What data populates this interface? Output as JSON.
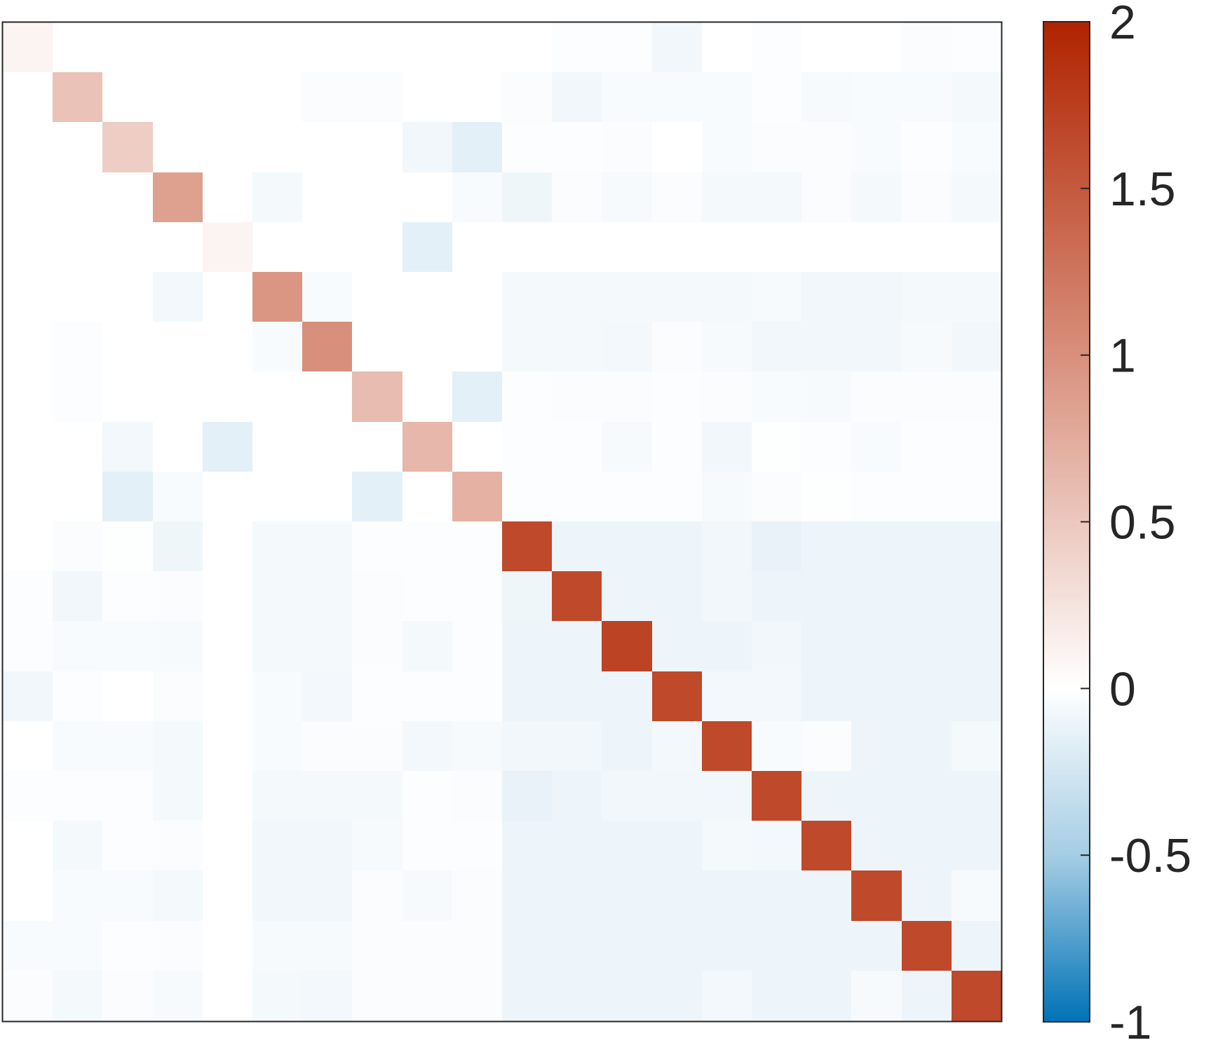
{
  "chart_data": {
    "type": "heatmap",
    "title": "",
    "xlabel": "",
    "ylabel": "",
    "rows": 20,
    "cols": 20,
    "clim": [
      -1,
      2
    ],
    "colormap": {
      "negative_end": "#0072b6",
      "mid_light_blue": "#a5cde4",
      "zero": "#ffffff",
      "positive_mid": "#d8907c",
      "positive_end": "#b02300"
    },
    "colorbar": {
      "ticks": [
        2,
        1.5,
        1,
        0.5,
        0,
        -0.5,
        -1
      ],
      "tick_labels": [
        "2",
        "1.5",
        "1",
        "0.5",
        "0",
        "-0.5",
        "-1"
      ]
    },
    "values": [
      [
        0.1,
        0,
        0,
        0,
        0,
        0,
        0,
        0,
        0,
        0,
        0,
        -0.02,
        -0.02,
        -0.08,
        0,
        -0.02,
        0,
        0,
        -0.03,
        -0.02
      ],
      [
        0,
        0.55,
        0,
        0,
        0,
        0,
        -0.03,
        -0.03,
        0,
        0,
        -0.03,
        -0.08,
        -0.04,
        -0.04,
        -0.04,
        -0.02,
        -0.05,
        -0.04,
        -0.04,
        -0.06
      ],
      [
        0,
        0,
        0.45,
        0,
        0,
        0,
        0,
        0,
        -0.08,
        -0.15,
        -0.02,
        -0.02,
        -0.03,
        0,
        -0.04,
        -0.03,
        -0.03,
        -0.04,
        -0.02,
        -0.04
      ],
      [
        0,
        0,
        0,
        0.85,
        0,
        -0.06,
        0,
        0,
        0,
        -0.04,
        -0.09,
        -0.03,
        -0.05,
        -0.03,
        -0.06,
        -0.06,
        -0.03,
        -0.06,
        -0.03,
        -0.06
      ],
      [
        0,
        0,
        0,
        0,
        0.1,
        0,
        0,
        0,
        -0.15,
        0,
        0,
        0,
        0,
        0,
        0,
        0,
        0,
        0,
        0,
        0
      ],
      [
        0,
        0,
        0,
        -0.07,
        0,
        0.95,
        -0.04,
        0,
        0,
        0,
        -0.06,
        -0.06,
        -0.06,
        -0.06,
        -0.06,
        -0.05,
        -0.08,
        -0.08,
        -0.06,
        -0.06
      ],
      [
        0,
        -0.02,
        0,
        0,
        0,
        -0.04,
        1.0,
        0,
        0,
        0,
        -0.06,
        -0.06,
        -0.07,
        -0.03,
        -0.05,
        -0.08,
        -0.08,
        -0.08,
        -0.05,
        -0.08
      ],
      [
        0,
        -0.02,
        0,
        0,
        0,
        0,
        0,
        0.6,
        0,
        -0.15,
        -0.02,
        -0.03,
        -0.03,
        -0.02,
        -0.03,
        -0.04,
        -0.05,
        -0.03,
        -0.03,
        -0.03
      ],
      [
        0,
        0,
        -0.07,
        0,
        -0.15,
        0,
        0,
        0,
        0.65,
        0,
        -0.02,
        -0.02,
        -0.05,
        -0.02,
        -0.08,
        -0.01,
        -0.02,
        -0.04,
        -0.02,
        -0.02
      ],
      [
        0,
        0,
        -0.15,
        -0.04,
        0,
        0,
        0,
        -0.15,
        0,
        0.7,
        -0.02,
        -0.02,
        -0.02,
        -0.02,
        -0.05,
        -0.03,
        -0.01,
        -0.02,
        -0.02,
        -0.02
      ],
      [
        0,
        -0.03,
        -0.01,
        -0.09,
        0,
        -0.06,
        -0.06,
        -0.02,
        -0.02,
        -0.02,
        1.65,
        -0.1,
        -0.1,
        -0.1,
        -0.08,
        -0.13,
        -0.1,
        -0.1,
        -0.1,
        -0.1
      ],
      [
        -0.02,
        -0.08,
        -0.02,
        -0.03,
        0,
        -0.06,
        -0.06,
        -0.03,
        -0.02,
        -0.02,
        -0.09,
        1.65,
        -0.1,
        -0.1,
        -0.08,
        -0.1,
        -0.1,
        -0.1,
        -0.1,
        -0.1
      ],
      [
        -0.02,
        -0.04,
        -0.04,
        -0.05,
        0,
        -0.06,
        -0.06,
        -0.03,
        -0.06,
        -0.02,
        -0.1,
        -0.1,
        1.7,
        -0.1,
        -0.1,
        -0.08,
        -0.1,
        -0.1,
        -0.1,
        -0.1
      ],
      [
        -0.08,
        -0.02,
        0,
        -0.03,
        0,
        -0.04,
        -0.07,
        -0.02,
        -0.02,
        -0.02,
        -0.1,
        -0.1,
        -0.1,
        1.65,
        -0.07,
        -0.07,
        -0.1,
        -0.1,
        -0.1,
        -0.1
      ],
      [
        0,
        -0.04,
        -0.04,
        -0.06,
        0,
        -0.04,
        -0.03,
        -0.03,
        -0.07,
        -0.05,
        -0.08,
        -0.08,
        -0.1,
        -0.07,
        1.65,
        -0.04,
        -0.03,
        -0.1,
        -0.1,
        -0.06
      ],
      [
        -0.02,
        -0.02,
        -0.02,
        -0.06,
        0,
        -0.06,
        -0.06,
        -0.06,
        -0.02,
        -0.03,
        -0.13,
        -0.1,
        -0.08,
        -0.08,
        -0.08,
        1.65,
        -0.1,
        -0.1,
        -0.1,
        -0.1
      ],
      [
        0,
        -0.06,
        -0.02,
        -0.03,
        0,
        -0.08,
        -0.08,
        -0.05,
        -0.02,
        -0.02,
        -0.1,
        -0.1,
        -0.1,
        -0.1,
        -0.06,
        -0.07,
        1.65,
        -0.1,
        -0.1,
        -0.1
      ],
      [
        0,
        -0.04,
        -0.04,
        -0.06,
        0,
        -0.08,
        -0.08,
        -0.03,
        -0.05,
        -0.03,
        -0.1,
        -0.1,
        -0.1,
        -0.1,
        -0.1,
        -0.1,
        -0.1,
        1.65,
        -0.1,
        -0.05
      ],
      [
        -0.04,
        -0.04,
        -0.02,
        -0.03,
        0,
        -0.05,
        -0.05,
        -0.03,
        -0.03,
        -0.03,
        -0.1,
        -0.1,
        -0.1,
        -0.1,
        -0.1,
        -0.1,
        -0.1,
        -0.1,
        1.65,
        -0.1
      ],
      [
        -0.03,
        -0.06,
        -0.03,
        -0.05,
        0,
        -0.06,
        -0.07,
        -0.03,
        -0.03,
        -0.03,
        -0.1,
        -0.1,
        -0.1,
        -0.1,
        -0.07,
        -0.1,
        -0.1,
        -0.05,
        -0.1,
        1.65
      ]
    ]
  }
}
